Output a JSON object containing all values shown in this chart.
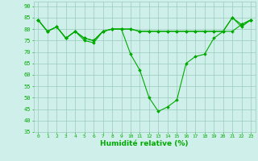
{
  "title": "",
  "xlabel": "Humidité relative (%)",
  "ylabel": "",
  "background_color": "#cff0ea",
  "grid_color": "#99ccbb",
  "line_color": "#00aa00",
  "xlim": [
    -0.5,
    23.5
  ],
  "ylim": [
    35,
    92
  ],
  "yticks": [
    35,
    40,
    45,
    50,
    55,
    60,
    65,
    70,
    75,
    80,
    85,
    90
  ],
  "xticks": [
    0,
    1,
    2,
    3,
    4,
    5,
    6,
    7,
    8,
    9,
    10,
    11,
    12,
    13,
    14,
    15,
    16,
    17,
    18,
    19,
    20,
    21,
    22,
    23
  ],
  "series": [
    [
      84,
      79,
      81,
      76,
      79,
      76,
      75,
      79,
      80,
      80,
      80,
      79,
      79,
      79,
      79,
      79,
      79,
      79,
      79,
      79,
      79,
      85,
      82,
      84
    ],
    [
      84,
      79,
      81,
      76,
      79,
      76,
      75,
      79,
      80,
      80,
      80,
      79,
      79,
      79,
      79,
      79,
      79,
      79,
      79,
      79,
      79,
      79,
      82,
      84
    ],
    [
      84,
      79,
      81,
      76,
      79,
      75,
      74,
      79,
      80,
      80,
      69,
      62,
      50,
      44,
      46,
      49,
      65,
      68,
      69,
      76,
      79,
      85,
      81,
      84
    ]
  ]
}
